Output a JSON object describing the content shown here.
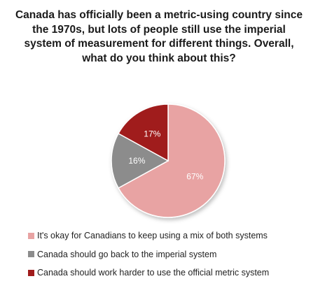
{
  "chart_data": {
    "type": "pie",
    "title": "Canada has officially been a metric-using country since the 1970s, but lots of people still use the imperial system of measurement for different things. Overall, what do you think about this?",
    "slices": [
      {
        "label": "It's okay for Canadians to keep using a mix of both systems",
        "value": 67,
        "value_label": "67%",
        "color": "#e8a3a3"
      },
      {
        "label": "Canada should go back to the imperial system",
        "value": 16,
        "value_label": "16%",
        "color": "#8c8c8c"
      },
      {
        "label": "Canada should work harder to use the official metric system",
        "value": 17,
        "value_label": "17%",
        "color": "#a01c1c"
      }
    ],
    "legend_position": "bottom"
  }
}
